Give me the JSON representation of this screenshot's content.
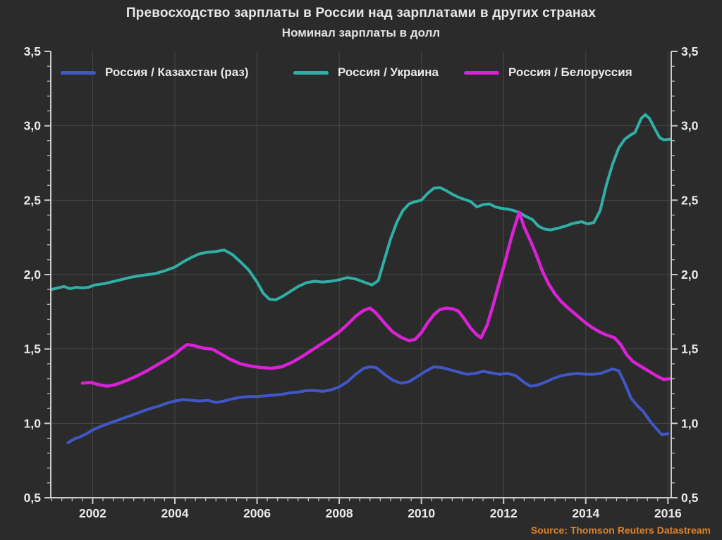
{
  "page": {
    "title": "Превосходство зарплаты в России над зарплатами в других странах",
    "subtitle": "Номинал зарплаты в долл",
    "source": "Source: Thomson Reuters Datastream"
  },
  "colors": {
    "background": "#2b2b2b",
    "grid": "#474747",
    "axis": "#c9c9c9",
    "tick_label": "#eaeaea",
    "source_text": "#d9832e"
  },
  "chart_data": {
    "type": "line",
    "title": "Превосходство зарплаты в России над зарплатами в других странах",
    "subtitle": "Номинал зарплаты в долл",
    "grid": true,
    "legend_position": "top-inside",
    "x_axis": {
      "range": [
        2000.98,
        2016.08
      ],
      "major_ticks": [
        2002,
        2004,
        2006,
        2008,
        2010,
        2012,
        2014,
        2016
      ],
      "tick_labels": [
        "2002",
        "2004",
        "2006",
        "2008",
        "2010",
        "2012",
        "2014",
        "2016"
      ],
      "minor_step": 0.25
    },
    "y_axis": {
      "range": [
        0.5,
        3.5
      ],
      "major_ticks": [
        0.5,
        1.0,
        1.5,
        2.0,
        2.5,
        3.0,
        3.5
      ],
      "tick_labels": [
        "0,5",
        "1,0",
        "1,5",
        "2,0",
        "2,5",
        "3,0",
        "3,5"
      ],
      "minor_step": 0.1,
      "mirrored_right": true,
      "gridline_values": [
        1.0,
        1.5,
        2.0,
        2.5,
        3.0
      ]
    },
    "legend": {
      "entries": [
        {
          "label": "Россия / Казахстан (раз)",
          "color": "#4157c8"
        },
        {
          "label": "Россия / Украина",
          "color": "#2fb0a6"
        },
        {
          "label": "Россия / Белоруссия",
          "color": "#d922d6"
        }
      ]
    },
    "series": [
      {
        "name": "Россия / Казахстан (раз)",
        "color": "#4157c8",
        "width": 4,
        "points": [
          [
            2001.4,
            0.87
          ],
          [
            2001.55,
            0.895
          ],
          [
            2001.7,
            0.91
          ],
          [
            2001.85,
            0.93
          ],
          [
            2002.0,
            0.955
          ],
          [
            2002.2,
            0.98
          ],
          [
            2002.4,
            1.0
          ],
          [
            2002.6,
            1.02
          ],
          [
            2002.8,
            1.04
          ],
          [
            2003.0,
            1.06
          ],
          [
            2003.2,
            1.08
          ],
          [
            2003.4,
            1.1
          ],
          [
            2003.6,
            1.115
          ],
          [
            2003.8,
            1.135
          ],
          [
            2004.0,
            1.15
          ],
          [
            2004.2,
            1.16
          ],
          [
            2004.4,
            1.155
          ],
          [
            2004.6,
            1.15
          ],
          [
            2004.8,
            1.155
          ],
          [
            2005.0,
            1.14
          ],
          [
            2005.2,
            1.15
          ],
          [
            2005.4,
            1.165
          ],
          [
            2005.6,
            1.175
          ],
          [
            2005.8,
            1.18
          ],
          [
            2006.0,
            1.18
          ],
          [
            2006.2,
            1.185
          ],
          [
            2006.4,
            1.19
          ],
          [
            2006.6,
            1.195
          ],
          [
            2006.8,
            1.205
          ],
          [
            2007.0,
            1.21
          ],
          [
            2007.2,
            1.22
          ],
          [
            2007.4,
            1.22
          ],
          [
            2007.6,
            1.215
          ],
          [
            2007.8,
            1.225
          ],
          [
            2008.0,
            1.245
          ],
          [
            2008.2,
            1.28
          ],
          [
            2008.4,
            1.33
          ],
          [
            2008.6,
            1.37
          ],
          [
            2008.75,
            1.38
          ],
          [
            2008.9,
            1.375
          ],
          [
            2009.1,
            1.33
          ],
          [
            2009.3,
            1.29
          ],
          [
            2009.5,
            1.27
          ],
          [
            2009.7,
            1.28
          ],
          [
            2009.9,
            1.315
          ],
          [
            2010.1,
            1.35
          ],
          [
            2010.3,
            1.38
          ],
          [
            2010.5,
            1.375
          ],
          [
            2010.7,
            1.36
          ],
          [
            2010.9,
            1.345
          ],
          [
            2011.1,
            1.33
          ],
          [
            2011.3,
            1.335
          ],
          [
            2011.5,
            1.35
          ],
          [
            2011.7,
            1.34
          ],
          [
            2011.9,
            1.33
          ],
          [
            2012.1,
            1.335
          ],
          [
            2012.3,
            1.32
          ],
          [
            2012.5,
            1.275
          ],
          [
            2012.65,
            1.25
          ],
          [
            2012.8,
            1.255
          ],
          [
            2013.0,
            1.275
          ],
          [
            2013.2,
            1.3
          ],
          [
            2013.4,
            1.32
          ],
          [
            2013.6,
            1.33
          ],
          [
            2013.8,
            1.335
          ],
          [
            2014.0,
            1.33
          ],
          [
            2014.2,
            1.33
          ],
          [
            2014.35,
            1.335
          ],
          [
            2014.5,
            1.35
          ],
          [
            2014.65,
            1.365
          ],
          [
            2014.8,
            1.355
          ],
          [
            2014.95,
            1.27
          ],
          [
            2015.1,
            1.17
          ],
          [
            2015.25,
            1.12
          ],
          [
            2015.4,
            1.08
          ],
          [
            2015.55,
            1.02
          ],
          [
            2015.7,
            0.97
          ],
          [
            2015.85,
            0.925
          ],
          [
            2016.0,
            0.93
          ]
        ]
      },
      {
        "name": "Россия / Украина",
        "color": "#2fb0a6",
        "width": 4,
        "points": [
          [
            2001.0,
            1.9
          ],
          [
            2001.15,
            1.91
          ],
          [
            2001.3,
            1.92
          ],
          [
            2001.45,
            1.905
          ],
          [
            2001.6,
            1.915
          ],
          [
            2001.75,
            1.91
          ],
          [
            2001.9,
            1.915
          ],
          [
            2002.05,
            1.93
          ],
          [
            2002.3,
            1.94
          ],
          [
            2002.6,
            1.96
          ],
          [
            2002.9,
            1.98
          ],
          [
            2003.2,
            1.995
          ],
          [
            2003.5,
            2.005
          ],
          [
            2003.75,
            2.025
          ],
          [
            2004.0,
            2.05
          ],
          [
            2004.2,
            2.085
          ],
          [
            2004.4,
            2.115
          ],
          [
            2004.6,
            2.14
          ],
          [
            2004.8,
            2.15
          ],
          [
            2005.0,
            2.155
          ],
          [
            2005.2,
            2.165
          ],
          [
            2005.4,
            2.135
          ],
          [
            2005.6,
            2.085
          ],
          [
            2005.8,
            2.03
          ],
          [
            2006.0,
            1.95
          ],
          [
            2006.15,
            1.875
          ],
          [
            2006.3,
            1.835
          ],
          [
            2006.45,
            1.83
          ],
          [
            2006.6,
            1.85
          ],
          [
            2006.8,
            1.885
          ],
          [
            2007.0,
            1.92
          ],
          [
            2007.2,
            1.945
          ],
          [
            2007.4,
            1.955
          ],
          [
            2007.6,
            1.95
          ],
          [
            2007.8,
            1.955
          ],
          [
            2008.0,
            1.965
          ],
          [
            2008.2,
            1.98
          ],
          [
            2008.4,
            1.97
          ],
          [
            2008.6,
            1.95
          ],
          [
            2008.8,
            1.93
          ],
          [
            2008.95,
            1.96
          ],
          [
            2009.1,
            2.1
          ],
          [
            2009.25,
            2.24
          ],
          [
            2009.4,
            2.35
          ],
          [
            2009.55,
            2.43
          ],
          [
            2009.7,
            2.475
          ],
          [
            2009.85,
            2.49
          ],
          [
            2010.0,
            2.5
          ],
          [
            2010.15,
            2.545
          ],
          [
            2010.3,
            2.58
          ],
          [
            2010.45,
            2.585
          ],
          [
            2010.6,
            2.565
          ],
          [
            2010.75,
            2.54
          ],
          [
            2010.9,
            2.52
          ],
          [
            2011.05,
            2.505
          ],
          [
            2011.2,
            2.49
          ],
          [
            2011.35,
            2.455
          ],
          [
            2011.5,
            2.47
          ],
          [
            2011.65,
            2.475
          ],
          [
            2011.8,
            2.455
          ],
          [
            2011.95,
            2.445
          ],
          [
            2012.1,
            2.44
          ],
          [
            2012.25,
            2.43
          ],
          [
            2012.4,
            2.415
          ],
          [
            2012.55,
            2.39
          ],
          [
            2012.7,
            2.37
          ],
          [
            2012.85,
            2.325
          ],
          [
            2013.0,
            2.305
          ],
          [
            2013.15,
            2.3
          ],
          [
            2013.3,
            2.31
          ],
          [
            2013.5,
            2.325
          ],
          [
            2013.7,
            2.345
          ],
          [
            2013.9,
            2.355
          ],
          [
            2014.05,
            2.34
          ],
          [
            2014.2,
            2.35
          ],
          [
            2014.35,
            2.43
          ],
          [
            2014.5,
            2.6
          ],
          [
            2014.65,
            2.74
          ],
          [
            2014.8,
            2.85
          ],
          [
            2014.95,
            2.91
          ],
          [
            2015.1,
            2.94
          ],
          [
            2015.2,
            2.955
          ],
          [
            2015.35,
            3.05
          ],
          [
            2015.45,
            3.075
          ],
          [
            2015.55,
            3.05
          ],
          [
            2015.7,
            2.97
          ],
          [
            2015.8,
            2.92
          ],
          [
            2015.9,
            2.905
          ],
          [
            2016.05,
            2.91
          ]
        ]
      },
      {
        "name": "Россия / Белоруссия",
        "color": "#d922d6",
        "width": 4.5,
        "points": [
          [
            2001.75,
            1.27
          ],
          [
            2001.95,
            1.275
          ],
          [
            2002.15,
            1.26
          ],
          [
            2002.35,
            1.25
          ],
          [
            2002.55,
            1.26
          ],
          [
            2002.8,
            1.285
          ],
          [
            2003.05,
            1.315
          ],
          [
            2003.3,
            1.35
          ],
          [
            2003.55,
            1.39
          ],
          [
            2003.8,
            1.43
          ],
          [
            2004.0,
            1.465
          ],
          [
            2004.15,
            1.5
          ],
          [
            2004.3,
            1.53
          ],
          [
            2004.5,
            1.52
          ],
          [
            2004.7,
            1.505
          ],
          [
            2004.9,
            1.5
          ],
          [
            2005.1,
            1.47
          ],
          [
            2005.35,
            1.43
          ],
          [
            2005.6,
            1.4
          ],
          [
            2005.85,
            1.385
          ],
          [
            2006.1,
            1.375
          ],
          [
            2006.35,
            1.37
          ],
          [
            2006.6,
            1.38
          ],
          [
            2006.85,
            1.41
          ],
          [
            2007.1,
            1.45
          ],
          [
            2007.35,
            1.495
          ],
          [
            2007.6,
            1.54
          ],
          [
            2007.8,
            1.575
          ],
          [
            2008.0,
            1.615
          ],
          [
            2008.2,
            1.665
          ],
          [
            2008.4,
            1.72
          ],
          [
            2008.6,
            1.76
          ],
          [
            2008.75,
            1.775
          ],
          [
            2008.9,
            1.74
          ],
          [
            2009.1,
            1.675
          ],
          [
            2009.3,
            1.615
          ],
          [
            2009.5,
            1.58
          ],
          [
            2009.7,
            1.555
          ],
          [
            2009.85,
            1.565
          ],
          [
            2010.0,
            1.61
          ],
          [
            2010.15,
            1.675
          ],
          [
            2010.3,
            1.73
          ],
          [
            2010.45,
            1.765
          ],
          [
            2010.6,
            1.775
          ],
          [
            2010.75,
            1.77
          ],
          [
            2010.9,
            1.755
          ],
          [
            2011.05,
            1.7
          ],
          [
            2011.2,
            1.64
          ],
          [
            2011.35,
            1.595
          ],
          [
            2011.45,
            1.575
          ],
          [
            2011.6,
            1.66
          ],
          [
            2011.75,
            1.8
          ],
          [
            2011.9,
            1.95
          ],
          [
            2012.05,
            2.1
          ],
          [
            2012.2,
            2.26
          ],
          [
            2012.38,
            2.42
          ],
          [
            2012.5,
            2.32
          ],
          [
            2012.65,
            2.23
          ],
          [
            2012.8,
            2.13
          ],
          [
            2012.95,
            2.02
          ],
          [
            2013.1,
            1.935
          ],
          [
            2013.25,
            1.87
          ],
          [
            2013.4,
            1.82
          ],
          [
            2013.55,
            1.78
          ],
          [
            2013.7,
            1.745
          ],
          [
            2013.85,
            1.71
          ],
          [
            2014.0,
            1.675
          ],
          [
            2014.15,
            1.645
          ],
          [
            2014.3,
            1.62
          ],
          [
            2014.45,
            1.6
          ],
          [
            2014.6,
            1.585
          ],
          [
            2014.7,
            1.575
          ],
          [
            2014.85,
            1.53
          ],
          [
            2015.0,
            1.46
          ],
          [
            2015.15,
            1.415
          ],
          [
            2015.3,
            1.39
          ],
          [
            2015.45,
            1.365
          ],
          [
            2015.6,
            1.34
          ],
          [
            2015.75,
            1.315
          ],
          [
            2015.9,
            1.295
          ],
          [
            2016.05,
            1.3
          ]
        ]
      }
    ]
  }
}
